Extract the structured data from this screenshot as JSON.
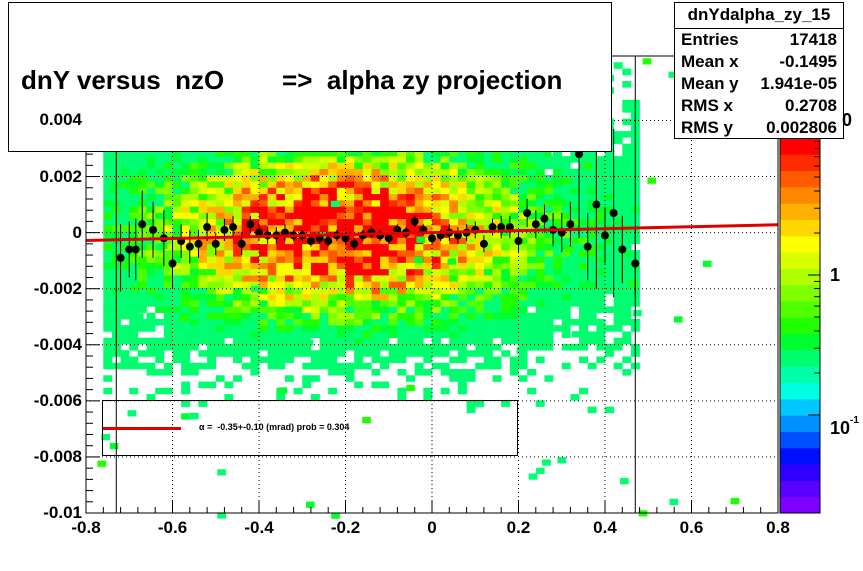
{
  "title": "dnY versus  nzO        =>  alpha zy projection",
  "stats": {
    "name": "dnYdalpha_zy_15",
    "rows": [
      {
        "key": "Entries",
        "value": "17418"
      },
      {
        "key": "Mean x",
        "value": "-0.1495"
      },
      {
        "key": "Mean y",
        "value": "1.941e-05"
      },
      {
        "key": "RMS x",
        "value": "0.2708"
      },
      {
        "key": "RMS y",
        "value": "0.002806"
      }
    ]
  },
  "legend": {
    "fit_label": "α =  -0.35+-0.10 (mrad) prob = 0.304",
    "fit_color": "#e00000"
  },
  "palette_labels": {
    "one": "1",
    "tenth_base": "10",
    "tenth_exp": "-1",
    "top_partial": "0"
  },
  "chart_data": {
    "type": "heatmap",
    "title": "dnY versus  nzO        =>  alpha zy projection",
    "xlabel": "",
    "ylabel": "",
    "xlim": [
      -0.8,
      0.8
    ],
    "ylim": [
      -0.01,
      0.0063
    ],
    "x_ticks": [
      "-0.8",
      "-0.6",
      "-0.4",
      "-0.2",
      "0",
      "0.2",
      "0.4",
      "0.6",
      "0.8"
    ],
    "y_ticks": [
      "-0.01",
      "-0.008",
      "-0.006",
      "-0.004",
      "-0.002",
      "0",
      "0.002",
      "0.004"
    ],
    "grid": true,
    "z_scale": "log",
    "colors": {
      "fit_line": "#e00000",
      "profile_points": "#000000"
    },
    "profile": {
      "name": "profile",
      "x": [
        -0.72,
        -0.7,
        -0.685,
        -0.67,
        -0.645,
        -0.62,
        -0.6,
        -0.58,
        -0.56,
        -0.54,
        -0.52,
        -0.5,
        -0.48,
        -0.46,
        -0.44,
        -0.42,
        -0.4,
        -0.38,
        -0.36,
        -0.34,
        -0.32,
        -0.3,
        -0.28,
        -0.26,
        -0.24,
        -0.22,
        -0.2,
        -0.18,
        -0.16,
        -0.14,
        -0.12,
        -0.1,
        -0.08,
        -0.06,
        -0.04,
        -0.02,
        0.0,
        0.02,
        0.04,
        0.06,
        0.08,
        0.1,
        0.12,
        0.14,
        0.16,
        0.18,
        0.2,
        0.22,
        0.24,
        0.26,
        0.28,
        0.3,
        0.32,
        0.34,
        0.36,
        0.38,
        0.4,
        0.42,
        0.44,
        0.47
      ],
      "y": [
        -0.0009,
        -0.0006,
        -0.0006,
        0.0003,
        0.0001,
        -0.0002,
        -0.0011,
        -0.0003,
        -0.0005,
        -0.0004,
        0.0002,
        -0.0004,
        0.0001,
        0.0002,
        -0.0004,
        0.0003,
        0.0,
        -0.0001,
        -0.0001,
        0.0,
        -0.0001,
        -0.0001,
        -0.0003,
        -0.0002,
        -0.0003,
        -0.0001,
        -0.0002,
        -0.0004,
        -0.0001,
        0.0,
        -0.0001,
        -0.0002,
        0.0001,
        0.0,
        0.0004,
        0.0001,
        -0.0002,
        -0.0001,
        0.0,
        -0.0001,
        0.0,
        0.0001,
        -0.0004,
        0.0002,
        0.0002,
        0.0002,
        -0.0003,
        0.0007,
        0.0003,
        0.0005,
        0.0001,
        0.0,
        0.0003,
        0.0028,
        -0.0005,
        0.001,
        -0.0001,
        0.0007,
        -0.0006,
        -0.0011
      ],
      "yerr": [
        0.0012,
        0.001,
        0.0011,
        0.0012,
        0.001,
        0.001,
        0.0009,
        0.0006,
        0.0006,
        0.0005,
        0.0005,
        0.0004,
        0.0004,
        0.0004,
        0.0004,
        0.0003,
        0.0003,
        0.0003,
        0.0003,
        0.0003,
        0.0002,
        0.0002,
        0.0002,
        0.0002,
        0.0002,
        0.0002,
        0.0002,
        0.0002,
        0.0002,
        0.0002,
        0.0002,
        0.0002,
        0.0002,
        0.0002,
        0.0002,
        0.0002,
        0.0002,
        0.0002,
        0.0003,
        0.0003,
        0.0003,
        0.0003,
        0.0003,
        0.0003,
        0.0004,
        0.0004,
        0.0004,
        0.0005,
        0.0005,
        0.0005,
        0.0006,
        0.0007,
        0.0008,
        0.003,
        0.0012,
        0.003,
        0.001,
        0.003,
        0.0012,
        0.0012
      ]
    },
    "fit": {
      "type": "line",
      "x": [
        -0.8,
        0.8
      ],
      "y": [
        -0.00028,
        0.00028
      ],
      "label": "α =  -0.35+-0.10 (mrad) prob = 0.304"
    }
  }
}
